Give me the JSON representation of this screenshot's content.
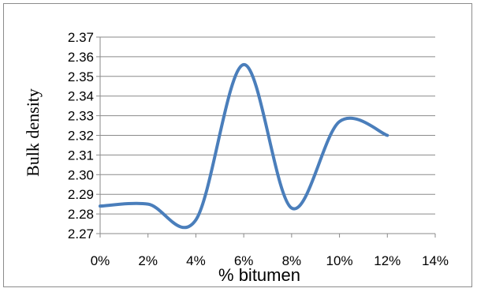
{
  "chart_data": {
    "type": "line",
    "smooth": true,
    "title": "",
    "xlabel": "% bitumen",
    "ylabel": "Bulk density",
    "x_tick_labels": [
      "0%",
      "2%",
      "4%",
      "6%",
      "8%",
      "10%",
      "12%",
      "14%"
    ],
    "y_tick_labels": [
      "2.27",
      "2.28",
      "2.29",
      "2.30",
      "2.31",
      "2.32",
      "2.33",
      "2.34",
      "2.35",
      "2.36",
      "2.37"
    ],
    "xlim": [
      0,
      14
    ],
    "ylim": [
      2.27,
      2.37
    ],
    "grid": "horizontal",
    "legend": "none",
    "series": [
      {
        "x": [
          0,
          2,
          4,
          6,
          8,
          10,
          12
        ],
        "values": [
          2.284,
          2.285,
          2.277,
          2.356,
          2.283,
          2.327,
          2.32
        ],
        "color": "#4a7ebb"
      }
    ]
  }
}
